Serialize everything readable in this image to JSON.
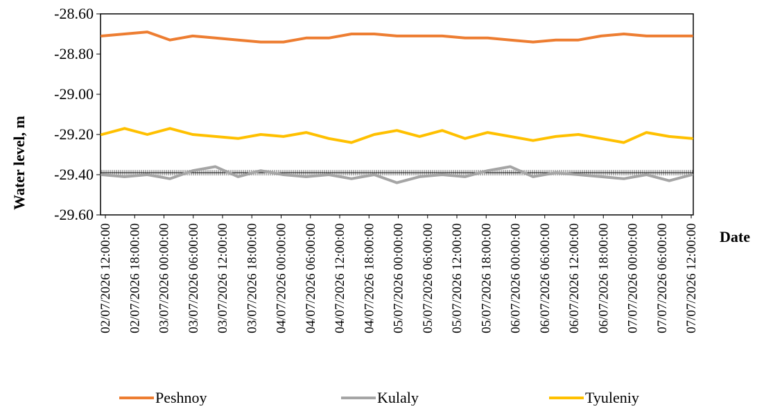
{
  "chart_data": {
    "type": "line",
    "xlabel": "Date",
    "ylabel": "Water level, m",
    "ylim": [
      -29.6,
      -28.6
    ],
    "y_ticks": [
      "-28.60",
      "-28.80",
      "-29.00",
      "-29.20",
      "-29.40",
      "-29.60"
    ],
    "x_tick_labels": [
      "02/07/2026 12:00:00",
      "02/07/2026 18:00:00",
      "03/07/2026 00:00:00",
      "03/07/2026 06:00:00",
      "03/07/2026 12:00:00",
      "03/07/2026 18:00:00",
      "04/07/2026 00:00:00",
      "04/07/2026 06:00:00",
      "04/07/2026 12:00:00",
      "04/07/2026 18:00:00",
      "05/07/2026 00:00:00",
      "05/07/2026 06:00:00",
      "05/07/2026 12:00:00",
      "05/07/2026 18:00:00",
      "06/07/2026 00:00:00",
      "06/07/2026 06:00:00",
      "06/07/2026 12:00:00",
      "06/07/2026 18:00:00",
      "07/07/2026 00:00:00",
      "07/07/2026 06:00:00",
      "07/07/2026 12:00:00"
    ],
    "legend_position": "bottom",
    "grid": false,
    "series": [
      {
        "name": "Peshnoy",
        "color": "#ED7D31",
        "values": [
          -28.71,
          -28.7,
          -28.69,
          -28.73,
          -28.71,
          -28.72,
          -28.73,
          -28.74,
          -28.74,
          -28.72,
          -28.72,
          -28.7,
          -28.7,
          -28.71,
          -28.71,
          -28.71,
          -28.72,
          -28.72,
          -28.73,
          -28.74,
          -28.73,
          -28.73,
          -28.71,
          -28.7,
          -28.71,
          -28.71,
          -28.71
        ]
      },
      {
        "name": "Kulaly",
        "color": "#A5A5A5",
        "values": [
          -29.4,
          -29.41,
          -29.4,
          -29.42,
          -29.38,
          -29.36,
          -29.41,
          -29.38,
          -29.4,
          -29.41,
          -29.4,
          -29.42,
          -29.4,
          -29.44,
          -29.41,
          -29.4,
          -29.41,
          -29.38,
          -29.36,
          -29.41,
          -29.39,
          -29.4,
          -29.41,
          -29.42,
          -29.4,
          -29.43,
          -29.4
        ]
      },
      {
        "name": "Tyuleniy",
        "color": "#FFC000",
        "values": [
          -29.2,
          -29.17,
          -29.2,
          -29.17,
          -29.2,
          -29.21,
          -29.22,
          -29.2,
          -29.21,
          -29.19,
          -29.22,
          -29.24,
          -29.2,
          -29.18,
          -29.21,
          -29.18,
          -29.22,
          -29.19,
          -29.21,
          -29.23,
          -29.21,
          -29.2,
          -29.22,
          -29.24,
          -29.19,
          -29.21,
          -29.22
        ]
      }
    ],
    "reference_line": {
      "value": -29.39,
      "style": "hatched"
    }
  }
}
